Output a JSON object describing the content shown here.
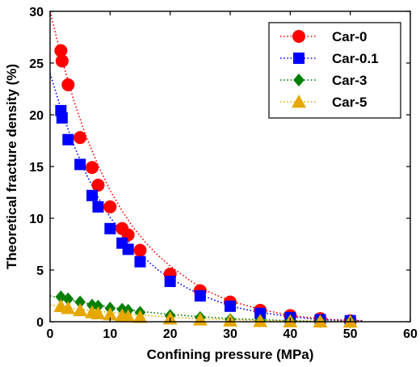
{
  "chart_data": {
    "type": "scatter",
    "xlabel": "Confining pressure (MPa)",
    "ylabel": "Theoretical fracture density (%)",
    "xlim": [
      0,
      60
    ],
    "ylim": [
      0,
      30
    ],
    "xticks": [
      0,
      10,
      20,
      30,
      40,
      50,
      60
    ],
    "yticks": [
      0,
      5,
      10,
      15,
      20,
      25,
      30
    ],
    "grid": false,
    "legend_position": "top-right",
    "series": [
      {
        "name": "Car-0",
        "color": "#ff0000",
        "marker": "circle",
        "points": [
          [
            1.8,
            26.2
          ],
          [
            2.0,
            25.2
          ],
          [
            3.0,
            22.9
          ],
          [
            5.0,
            17.8
          ],
          [
            7.0,
            14.9
          ],
          [
            8.0,
            13.2
          ],
          [
            10.0,
            11.1
          ],
          [
            12.0,
            9.0
          ],
          [
            13.0,
            8.4
          ],
          [
            15.0,
            6.9
          ],
          [
            20.0,
            4.6
          ],
          [
            25.0,
            3.0
          ],
          [
            30.0,
            1.9
          ],
          [
            35.0,
            1.1
          ],
          [
            40.0,
            0.6
          ],
          [
            45.0,
            0.3
          ],
          [
            50.0,
            0.1
          ]
        ],
        "fit": [
          [
            0,
            30.0
          ],
          [
            2,
            25.3
          ],
          [
            4,
            21.3
          ],
          [
            6,
            17.9
          ],
          [
            8,
            15.1
          ],
          [
            10,
            12.7
          ],
          [
            12,
            10.7
          ],
          [
            14,
            9.0
          ],
          [
            16,
            7.6
          ],
          [
            18,
            6.4
          ],
          [
            20,
            5.4
          ],
          [
            23,
            4.1
          ],
          [
            26,
            3.0
          ],
          [
            30,
            2.0
          ],
          [
            35,
            1.2
          ],
          [
            40,
            0.6
          ],
          [
            45,
            0.3
          ],
          [
            50,
            0.1
          ],
          [
            52,
            0.1
          ]
        ]
      },
      {
        "name": "Car-0.1",
        "color": "#0000ff",
        "marker": "square",
        "points": [
          [
            1.8,
            20.4
          ],
          [
            2.0,
            19.7
          ],
          [
            3.0,
            17.6
          ],
          [
            5.0,
            15.2
          ],
          [
            7.0,
            12.2
          ],
          [
            8.0,
            11.1
          ],
          [
            10.0,
            9.0
          ],
          [
            12.0,
            7.6
          ],
          [
            13.0,
            7.0
          ],
          [
            15.0,
            5.8
          ],
          [
            20.0,
            3.9
          ],
          [
            25.0,
            2.5
          ],
          [
            30.0,
            1.5
          ],
          [
            35.0,
            0.8
          ],
          [
            40.0,
            0.4
          ],
          [
            45.0,
            0.2
          ],
          [
            50.0,
            0.1
          ]
        ],
        "fit": [
          [
            0,
            24.0
          ],
          [
            2,
            20.2
          ],
          [
            4,
            17.0
          ],
          [
            6,
            14.3
          ],
          [
            8,
            12.0
          ],
          [
            10,
            10.1
          ],
          [
            12,
            8.5
          ],
          [
            14,
            7.1
          ],
          [
            16,
            6.0
          ],
          [
            18,
            5.0
          ],
          [
            20,
            4.2
          ],
          [
            23,
            3.2
          ],
          [
            26,
            2.4
          ],
          [
            30,
            1.5
          ],
          [
            35,
            0.9
          ],
          [
            40,
            0.5
          ],
          [
            45,
            0.2
          ],
          [
            50,
            0.1
          ],
          [
            52,
            0.1
          ]
        ]
      },
      {
        "name": "Car-3",
        "color": "#007f00",
        "marker": "diamond",
        "points": [
          [
            1.8,
            2.4
          ],
          [
            3.0,
            2.2
          ],
          [
            5.0,
            1.9
          ],
          [
            7.0,
            1.6
          ],
          [
            8.0,
            1.5
          ],
          [
            10.0,
            1.3
          ],
          [
            12.0,
            1.2
          ],
          [
            13.0,
            1.1
          ],
          [
            15.0,
            0.9
          ],
          [
            20.0,
            0.6
          ],
          [
            25.0,
            0.4
          ],
          [
            30.0,
            0.2
          ],
          [
            35.0,
            0.1
          ],
          [
            40.0,
            0.05
          ],
          [
            45.0,
            0.02
          ],
          [
            50.0,
            0.01
          ]
        ],
        "fit": [
          [
            0,
            2.5
          ],
          [
            5,
            1.9
          ],
          [
            10,
            1.4
          ],
          [
            15,
            1.0
          ],
          [
            20,
            0.7
          ],
          [
            25,
            0.5
          ],
          [
            30,
            0.3
          ],
          [
            35,
            0.2
          ],
          [
            40,
            0.1
          ],
          [
            45,
            0.05
          ],
          [
            52,
            0.02
          ]
        ]
      },
      {
        "name": "Car-5",
        "color": "#e6a800",
        "marker": "triangle",
        "points": [
          [
            1.8,
            1.5
          ],
          [
            3.0,
            1.3
          ],
          [
            5.0,
            1.1
          ],
          [
            7.0,
            0.9
          ],
          [
            8.0,
            0.8
          ],
          [
            10.0,
            0.7
          ],
          [
            12.0,
            0.6
          ],
          [
            13.0,
            0.5
          ],
          [
            15.0,
            0.45
          ],
          [
            20.0,
            0.3
          ],
          [
            25.0,
            0.2
          ],
          [
            30.0,
            0.1
          ],
          [
            35.0,
            0.05
          ],
          [
            40.0,
            0.03
          ],
          [
            45.0,
            0.01
          ],
          [
            50.0,
            0.0
          ]
        ],
        "fit": [
          [
            0,
            1.6
          ],
          [
            5,
            1.2
          ],
          [
            10,
            0.9
          ],
          [
            15,
            0.65
          ],
          [
            20,
            0.45
          ],
          [
            25,
            0.3
          ],
          [
            30,
            0.2
          ],
          [
            35,
            0.12
          ],
          [
            40,
            0.07
          ],
          [
            45,
            0.04
          ],
          [
            52,
            0.02
          ]
        ]
      }
    ]
  }
}
